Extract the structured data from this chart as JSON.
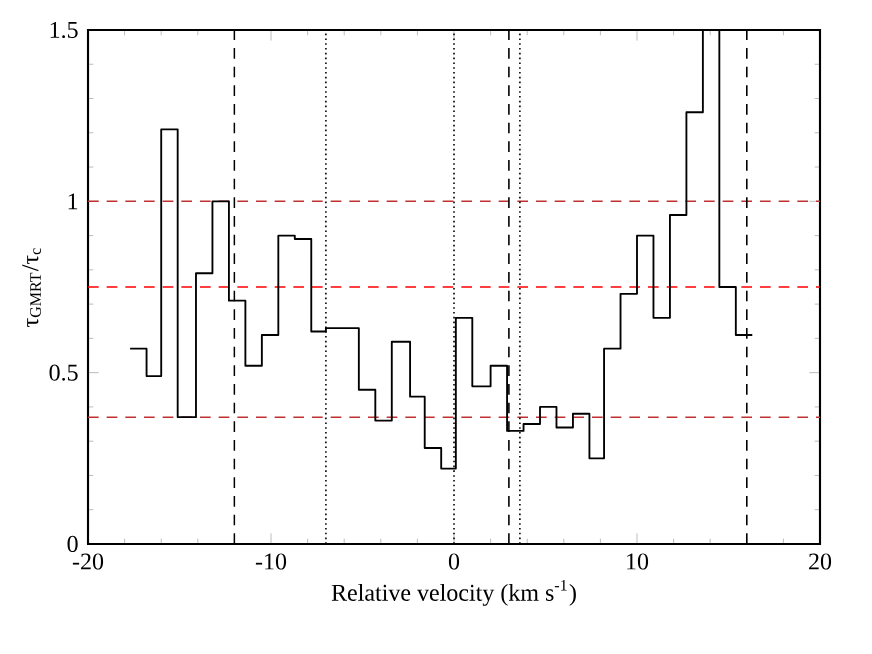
{
  "chart_data": {
    "type": "step",
    "xlabel": "Relative velocity (km s$^{-1}$)",
    "ylabel": "τ$_{GMRT}$/τ$_{c}$",
    "x": [
      -17.7,
      -16.8,
      -16.0,
      -15.1,
      -14.1,
      -13.2,
      -12.3,
      -11.4,
      -10.5,
      -9.6,
      -8.7,
      -7.8,
      -7.0,
      -5.2,
      -4.3,
      -3.4,
      -2.4,
      -1.6,
      -0.7,
      0.1,
      1.0,
      2.0,
      2.9,
      3.8,
      4.7,
      5.6,
      6.5,
      7.4,
      8.2,
      9.1,
      10.0,
      10.9,
      11.8,
      12.7,
      13.6,
      14.5,
      15.4,
      16.3
    ],
    "series": [
      {
        "color": "#000000",
        "values": [
          0.57,
          0.49,
          1.21,
          0.37,
          0.79,
          1.0,
          0.71,
          0.52,
          0.61,
          0.9,
          0.89,
          0.62,
          0.63,
          0.45,
          0.36,
          0.59,
          0.43,
          0.28,
          0.22,
          0.66,
          0.46,
          0.52,
          0.33,
          0.35,
          0.4,
          0.34,
          0.38,
          0.25,
          0.57,
          0.73,
          0.9,
          0.66,
          0.96,
          1.26,
          1.5,
          0.75,
          0.61,
          0.61
        ]
      }
    ],
    "xlim": [
      -20,
      20
    ],
    "ylim": [
      0,
      1.5
    ],
    "xticks": [
      -20,
      -10,
      0,
      10,
      20
    ],
    "yticks": [
      0,
      0.5,
      1,
      1.5
    ],
    "ref_lines": [
      {
        "axis": "y",
        "value": 1.0,
        "color": "#c03030",
        "line_style": "dashed"
      },
      {
        "axis": "y",
        "value": 0.75,
        "color": "#ff0000",
        "line_style": "dashed"
      },
      {
        "axis": "y",
        "value": 0.37,
        "color": "#c03030",
        "line_style": "dashed"
      },
      {
        "axis": "x",
        "value": -12.0,
        "color": "#000000",
        "line_style": "dashed"
      },
      {
        "axis": "x",
        "value": 3.0,
        "color": "#000000",
        "line_style": "dashed"
      },
      {
        "axis": "x",
        "value": 16.0,
        "color": "#000000",
        "line_style": "dashed"
      },
      {
        "axis": "x",
        "value": -7.0,
        "color": "#000000",
        "line_style": "dotted"
      },
      {
        "axis": "x",
        "value": 0.0,
        "color": "#000000",
        "line_style": "dotted"
      },
      {
        "axis": "x",
        "value": 3.6,
        "color": "#000000",
        "line_style": "dotted"
      }
    ]
  }
}
